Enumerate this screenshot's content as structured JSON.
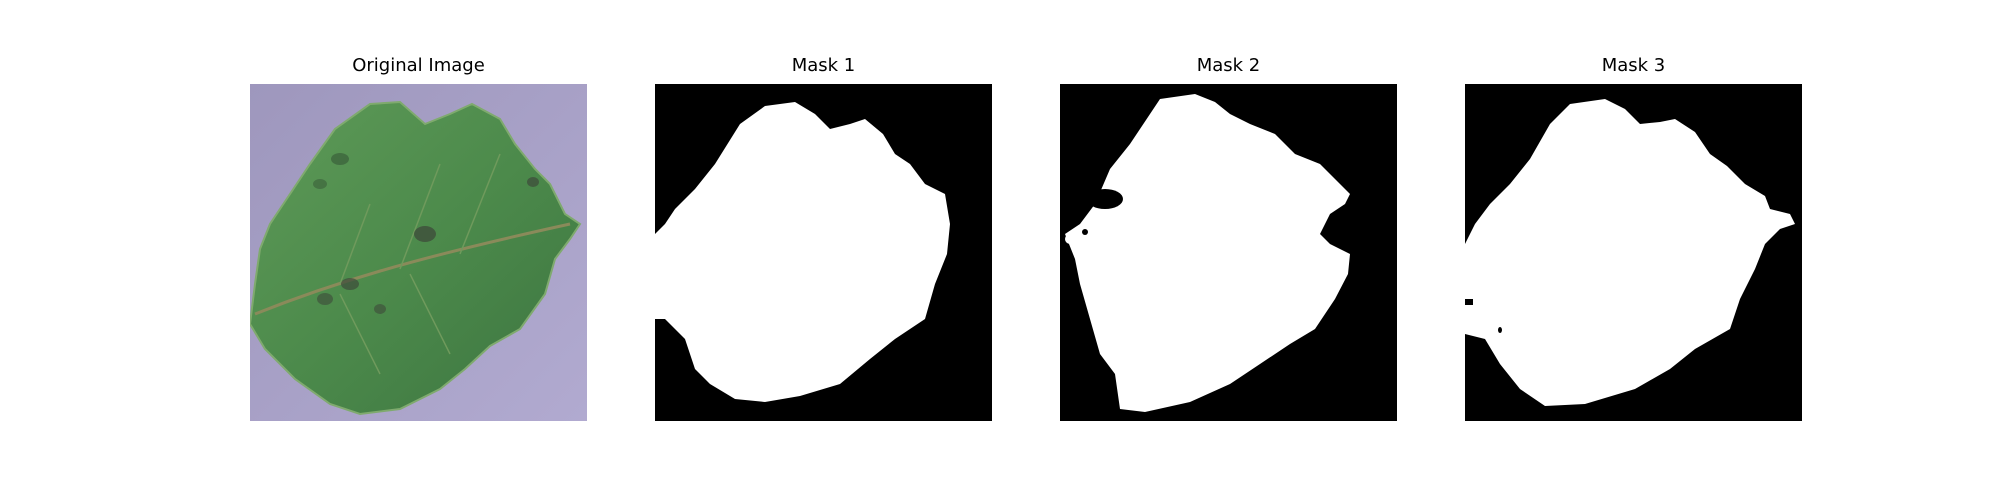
{
  "figure": {
    "panels": [
      {
        "title": "Original Image",
        "image": "leaf-photo"
      },
      {
        "title": "Mask 1",
        "image": "binary-mask"
      },
      {
        "title": "Mask 2",
        "image": "binary-mask"
      },
      {
        "title": "Mask 3",
        "image": "binary-mask"
      }
    ]
  },
  "colors": {
    "background_purple": "#a69fc4",
    "leaf_green": "#4f8a4b",
    "leaf_dark": "#2f5e31",
    "mask_foreground": "#ffffff",
    "mask_background": "#000000"
  }
}
